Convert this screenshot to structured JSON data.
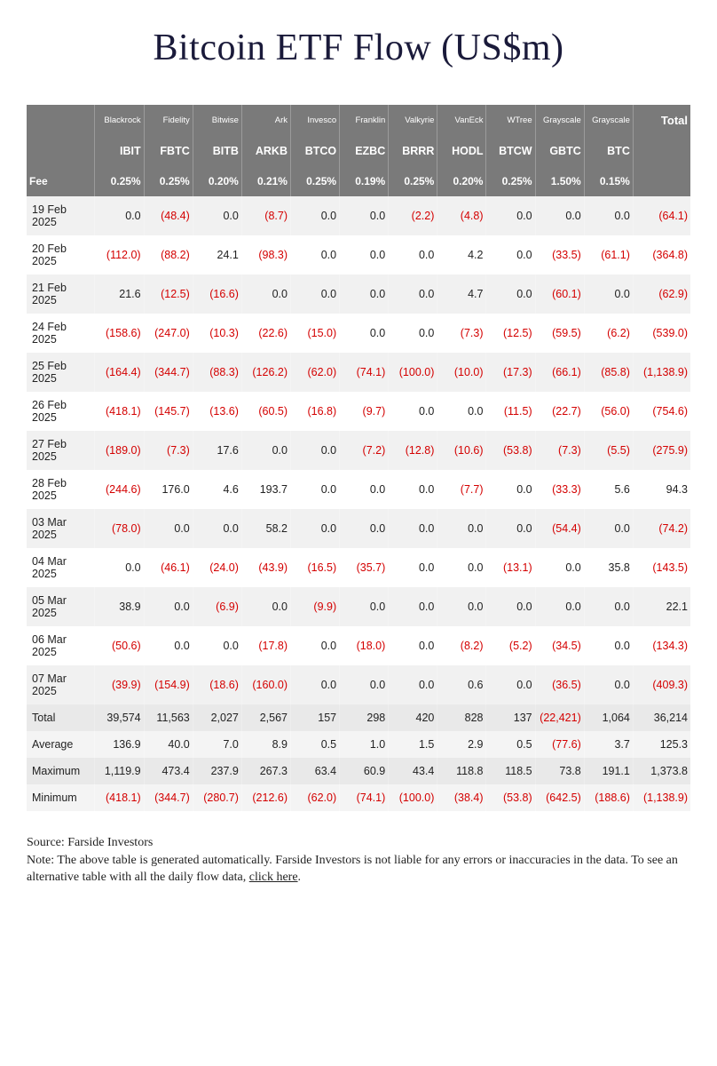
{
  "title": "Bitcoin ETF Flow (US$m)",
  "colors": {
    "negative": "#d40000",
    "positive": "#222222",
    "header_bg": "#7a7a7a",
    "row_odd": "#f1f1f1",
    "row_even": "#ffffff",
    "summary_bg": "#e9e9e9"
  },
  "columns": [
    {
      "provider": "Blackrock",
      "ticker": "IBIT",
      "fee": "0.25%"
    },
    {
      "provider": "Fidelity",
      "ticker": "FBTC",
      "fee": "0.25%"
    },
    {
      "provider": "Bitwise",
      "ticker": "BITB",
      "fee": "0.20%"
    },
    {
      "provider": "Ark",
      "ticker": "ARKB",
      "fee": "0.21%"
    },
    {
      "provider": "Invesco",
      "ticker": "BTCO",
      "fee": "0.25%"
    },
    {
      "provider": "Franklin",
      "ticker": "EZBC",
      "fee": "0.19%"
    },
    {
      "provider": "Valkyrie",
      "ticker": "BRRR",
      "fee": "0.25%"
    },
    {
      "provider": "VanEck",
      "ticker": "HODL",
      "fee": "0.20%"
    },
    {
      "provider": "WTree",
      "ticker": "BTCW",
      "fee": "0.25%"
    },
    {
      "provider": "Grayscale",
      "ticker": "GBTC",
      "fee": "1.50%"
    },
    {
      "provider": "Grayscale",
      "ticker": "BTC",
      "fee": "0.15%"
    }
  ],
  "total_label": "Total",
  "fee_row_label": "Fee",
  "rows": [
    {
      "date": "19 Feb 2025",
      "v": [
        0.0,
        -48.4,
        0.0,
        -8.7,
        0.0,
        0.0,
        -2.2,
        -4.8,
        0.0,
        0.0,
        0.0
      ],
      "total": -64.1
    },
    {
      "date": "20 Feb 2025",
      "v": [
        -112.0,
        -88.2,
        24.1,
        -98.3,
        0.0,
        0.0,
        0.0,
        4.2,
        0.0,
        -33.5,
        -61.1
      ],
      "total": -364.8
    },
    {
      "date": "21 Feb 2025",
      "v": [
        21.6,
        -12.5,
        -16.6,
        0.0,
        0.0,
        0.0,
        0.0,
        4.7,
        0.0,
        -60.1,
        0.0
      ],
      "total": -62.9
    },
    {
      "date": "24 Feb 2025",
      "v": [
        -158.6,
        -247.0,
        -10.3,
        -22.6,
        -15.0,
        0.0,
        0.0,
        -7.3,
        -12.5,
        -59.5,
        -6.2
      ],
      "total": -539.0
    },
    {
      "date": "25 Feb 2025",
      "v": [
        -164.4,
        -344.7,
        -88.3,
        -126.2,
        -62.0,
        -74.1,
        -100.0,
        -10.0,
        -17.3,
        -66.1,
        -85.8
      ],
      "total": -1138.9
    },
    {
      "date": "26 Feb 2025",
      "v": [
        -418.1,
        -145.7,
        -13.6,
        -60.5,
        -16.8,
        -9.7,
        0.0,
        0.0,
        -11.5,
        -22.7,
        -56.0
      ],
      "total": -754.6
    },
    {
      "date": "27 Feb 2025",
      "v": [
        -189.0,
        -7.3,
        17.6,
        0.0,
        0.0,
        -7.2,
        -12.8,
        -10.6,
        -53.8,
        -7.3,
        -5.5
      ],
      "total": -275.9
    },
    {
      "date": "28 Feb 2025",
      "v": [
        -244.6,
        176.0,
        4.6,
        193.7,
        0.0,
        0.0,
        0.0,
        -7.7,
        0.0,
        -33.3,
        5.6
      ],
      "total": 94.3
    },
    {
      "date": "03 Mar 2025",
      "v": [
        -78.0,
        0.0,
        0.0,
        58.2,
        0.0,
        0.0,
        0.0,
        0.0,
        0.0,
        -54.4,
        0.0
      ],
      "total": -74.2
    },
    {
      "date": "04 Mar 2025",
      "v": [
        0.0,
        -46.1,
        -24.0,
        -43.9,
        -16.5,
        -35.7,
        0.0,
        0.0,
        -13.1,
        0.0,
        35.8
      ],
      "total": -143.5
    },
    {
      "date": "05 Mar 2025",
      "v": [
        38.9,
        0.0,
        -6.9,
        0.0,
        -9.9,
        0.0,
        0.0,
        0.0,
        0.0,
        0.0,
        0.0
      ],
      "total": 22.1
    },
    {
      "date": "06 Mar 2025",
      "v": [
        -50.6,
        0.0,
        0.0,
        -17.8,
        0.0,
        -18.0,
        0.0,
        -8.2,
        -5.2,
        -34.5,
        0.0
      ],
      "total": -134.3
    },
    {
      "date": "07 Mar 2025",
      "v": [
        -39.9,
        -154.9,
        -18.6,
        -160.0,
        0.0,
        0.0,
        0.0,
        0.6,
        0.0,
        -36.5,
        0.0
      ],
      "total": -409.3
    }
  ],
  "summary": [
    {
      "label": "Total",
      "v": [
        "39,574",
        "11,563",
        "2,027",
        "2,567",
        "157",
        "298",
        "420",
        "828",
        "137",
        "(22,421)",
        "1,064"
      ],
      "neg": [
        false,
        false,
        false,
        false,
        false,
        false,
        false,
        false,
        false,
        true,
        false
      ],
      "total": "36,214",
      "total_neg": false
    },
    {
      "label": "Average",
      "v": [
        "136.9",
        "40.0",
        "7.0",
        "8.9",
        "0.5",
        "1.0",
        "1.5",
        "2.9",
        "0.5",
        "(77.6)",
        "3.7"
      ],
      "neg": [
        false,
        false,
        false,
        false,
        false,
        false,
        false,
        false,
        false,
        true,
        false
      ],
      "total": "125.3",
      "total_neg": false
    },
    {
      "label": "Maximum",
      "v": [
        "1,119.9",
        "473.4",
        "237.9",
        "267.3",
        "63.4",
        "60.9",
        "43.4",
        "118.8",
        "118.5",
        "73.8",
        "191.1"
      ],
      "neg": [
        false,
        false,
        false,
        false,
        false,
        false,
        false,
        false,
        false,
        false,
        false
      ],
      "total": "1,373.8",
      "total_neg": false
    },
    {
      "label": "Minimum",
      "v": [
        "(418.1)",
        "(344.7)",
        "(280.7)",
        "(212.6)",
        "(62.0)",
        "(74.1)",
        "(100.0)",
        "(38.4)",
        "(53.8)",
        "(642.5)",
        "(188.6)"
      ],
      "neg": [
        true,
        true,
        true,
        true,
        true,
        true,
        true,
        true,
        true,
        true,
        true
      ],
      "total": "(1,138.9)",
      "total_neg": true
    }
  ],
  "footer": {
    "source": "Source: Farside Investors",
    "note_prefix": "Note: The above table is generated automatically. Farside Investors is not liable for any errors or inaccuracies in the data. To see an alternative table with all the daily flow data, ",
    "link_text": "click here",
    "note_suffix": "."
  }
}
